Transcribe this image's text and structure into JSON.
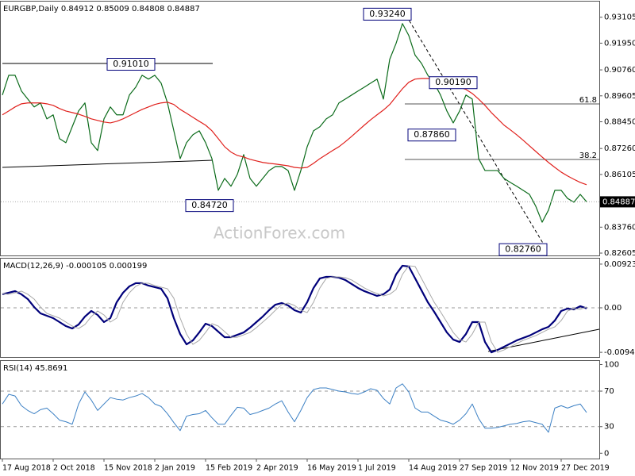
{
  "chart_data": [
    {
      "type": "line",
      "title": "EURGBP,Daily 0.84912 0.85009 0.84808 0.84887",
      "watermark": "ActionForex.com",
      "ylim": [
        0.825,
        0.938
      ],
      "yticks": [
        0.93105,
        {
          "value": 0.9195,
          "label": "0.91950"
        },
        {
          "value": 0.9076,
          "label": "0.90760"
        },
        0.89605,
        {
          "value": 0.8845,
          "label": "0.88450"
        },
        {
          "value": 0.8726,
          "label": "0.87260"
        },
        0.86105,
        {
          "value": 0.8376,
          "label": "0.83760"
        },
        0.82605
      ],
      "last_price": 0.84887,
      "annotations": [
        {
          "value": 0.9324,
          "label": "0.93240"
        },
        {
          "value": 0.9101,
          "label": "0.91010"
        },
        {
          "value": 0.9019,
          "label": "0.90190"
        },
        {
          "value": 0.8786,
          "label": "0.87860"
        },
        {
          "value": 0.8472,
          "label": "0.84720"
        },
        {
          "value": 0.8276,
          "label": "0.82760"
        }
      ],
      "fib_labels": [
        61.8,
        38.2
      ],
      "series": [
        {
          "color": "#0b6b1a",
          "values": [
            0.8964,
            0.9052,
            0.9052,
            0.8982,
            0.8946,
            0.8911,
            0.8929,
            0.8858,
            0.8876,
            0.877,
            0.8752,
            0.8823,
            0.8893,
            0.8929,
            0.8752,
            0.8717,
            0.8858,
            0.8911,
            0.8876,
            0.8876,
            0.8964,
            0.8999,
            0.9052,
            0.9035,
            0.9052,
            0.9017,
            0.8929,
            0.8805,
            0.8681,
            0.8752,
            0.8787,
            0.8805,
            0.8752,
            0.8681,
            0.854,
            0.8593,
            0.8558,
            0.8611,
            0.8699,
            0.8593,
            0.8558,
            0.8593,
            0.8628,
            0.8646,
            0.8646,
            0.8628,
            0.854,
            0.8628,
            0.8734,
            0.8805,
            0.8823,
            0.8858,
            0.8876,
            0.8929,
            0.8946,
            0.8964,
            0.8982,
            0.8999,
            0.9017,
            0.9035,
            0.8946,
            0.9123,
            0.9194,
            0.9282,
            0.9229,
            0.9141,
            0.9105,
            0.9052,
            0.9017,
            0.8964,
            0.8893,
            0.884,
            0.8893,
            0.8964,
            0.8946,
            0.8681,
            0.8628,
            0.8628,
            0.8628,
            0.8593,
            0.8575,
            0.8558,
            0.854,
            0.8522,
            0.8469,
            0.8398,
            0.8452,
            0.854,
            0.854,
            0.8504,
            0.8487,
            0.8522,
            0.8489
          ]
        },
        {
          "color": "#e0201c",
          "values": [
            0.8876,
            0.8893,
            0.8911,
            0.8925,
            0.8929,
            0.8929,
            0.8929,
            0.8925,
            0.8918,
            0.8904,
            0.8893,
            0.8886,
            0.8879,
            0.8869,
            0.8858,
            0.8851,
            0.8844,
            0.884,
            0.8847,
            0.8858,
            0.8872,
            0.8886,
            0.89,
            0.8911,
            0.8922,
            0.8929,
            0.8932,
            0.8922,
            0.89,
            0.8883,
            0.8865,
            0.8847,
            0.883,
            0.8805,
            0.877,
            0.8734,
            0.871,
            0.8695,
            0.8688,
            0.8678,
            0.8671,
            0.8664,
            0.866,
            0.8657,
            0.8653,
            0.8649,
            0.8642,
            0.8639,
            0.8642,
            0.866,
            0.8681,
            0.8699,
            0.8717,
            0.8734,
            0.8756,
            0.878,
            0.8805,
            0.883,
            0.8854,
            0.8876,
            0.8897,
            0.8922,
            0.8957,
            0.8992,
            0.9021,
            0.9035,
            0.9038,
            0.9038,
            0.9035,
            0.9028,
            0.9017,
            0.9007,
            0.8999,
            0.8989,
            0.8971,
            0.8946,
            0.8918,
            0.8886,
            0.8858,
            0.883,
            0.8809,
            0.8787,
            0.8763,
            0.8738,
            0.8713,
            0.8688,
            0.8664,
            0.8642,
            0.8621,
            0.8604,
            0.8589,
            0.8575,
            0.8565
          ]
        }
      ]
    },
    {
      "type": "line",
      "title": "MACD(12,26,9) -0.000105 0.000199",
      "ylim": [
        -0.0104,
        0.0104
      ],
      "yticks": [
        0.009237,
        {
          "value": 0,
          "label": "0.00"
        },
        -0.009413
      ],
      "levels": [
        0
      ],
      "series": [
        {
          "color": "#00007a",
          "width": 2.2,
          "values": [
            0.00286,
            0.00319,
            0.00353,
            0.00286,
            0.00185,
            0.00017,
            -0.00118,
            -0.00168,
            -0.00218,
            -0.00302,
            -0.00386,
            -0.00437,
            -0.00353,
            -0.00185,
            -0.00067,
            -0.00151,
            -0.00302,
            -0.00218,
            0.00118,
            0.00319,
            0.00454,
            0.00521,
            0.00521,
            0.0047,
            0.00437,
            0.00403,
            0.00202,
            -0.00218,
            -0.00554,
            -0.00773,
            -0.00689,
            -0.00521,
            -0.00336,
            -0.00386,
            -0.00504,
            -0.00622,
            -0.00622,
            -0.00571,
            -0.00521,
            -0.0042,
            -0.00302,
            -0.00185,
            -0.0005,
            0.00067,
            0.00101,
            0.0005,
            -0.0005,
            -0.00101,
            0.00118,
            0.0042,
            0.00622,
            0.00655,
            0.00655,
            0.00638,
            0.00588,
            0.00504,
            0.0042,
            0.00353,
            0.00302,
            0.00252,
            0.00286,
            0.00386,
            0.00706,
            0.0089,
            0.00874,
            0.00622,
            0.0037,
            0.00118,
            -0.00084,
            -0.00302,
            -0.00521,
            -0.00672,
            -0.00722,
            -0.00554,
            -0.00302,
            -0.00302,
            -0.00722,
            -0.00941,
            -0.0089,
            -0.00823,
            -0.00756,
            -0.00689,
            -0.00638,
            -0.00588,
            -0.00521,
            -0.00454,
            -0.00403,
            -0.00269,
            -0.00067,
            -0.00017,
            -0.00034,
            0.00034,
            -0.00011
          ]
        },
        {
          "color": "#a8a8a8",
          "width": 1,
          "values": [
            0.003,
            0.00286,
            0.00319,
            0.00353,
            0.00286,
            0.00185,
            0.00017,
            -0.00118,
            -0.00168,
            -0.00218,
            -0.00302,
            -0.00386,
            -0.00437,
            -0.00353,
            -0.00185,
            -0.00067,
            -0.00151,
            -0.00302,
            -0.00218,
            0.00118,
            0.00319,
            0.00454,
            0.00521,
            0.00521,
            0.0047,
            0.00437,
            0.00403,
            0.00202,
            -0.00218,
            -0.00554,
            -0.00773,
            -0.00689,
            -0.00521,
            -0.00336,
            -0.00386,
            -0.00504,
            -0.00622,
            -0.00622,
            -0.00571,
            -0.00521,
            -0.0042,
            -0.00302,
            -0.00185,
            -0.0005,
            0.00067,
            0.00101,
            0.0005,
            -0.0005,
            -0.00101,
            0.00118,
            0.0042,
            0.00622,
            0.00655,
            0.00655,
            0.00638,
            0.00588,
            0.00504,
            0.0042,
            0.00353,
            0.00302,
            0.00252,
            0.00286,
            0.00386,
            0.00706,
            0.0089,
            0.00874,
            0.00622,
            0.0037,
            0.00118,
            -0.00084,
            -0.00302,
            -0.00521,
            -0.00672,
            -0.00722,
            -0.00554,
            -0.00302,
            -0.00302,
            -0.00722,
            -0.00941,
            -0.0089,
            -0.00823,
            -0.00756,
            -0.00689,
            -0.00638,
            -0.00588,
            -0.00521,
            -0.00454,
            -0.00403,
            -0.00269,
            -0.00067,
            -0.00017,
            -0.00034,
            0.0002
          ]
        }
      ]
    },
    {
      "type": "line",
      "title": "RSI(14) 45.8691",
      "ylim": [
        -6,
        104
      ],
      "yticks": [
        100,
        70,
        30,
        0
      ],
      "levels": [
        70,
        30
      ],
      "categories": [
        "17 Aug 2018",
        null,
        null,
        null,
        null,
        null,
        null,
        null,
        "2 Oct 2018",
        null,
        null,
        null,
        null,
        null,
        null,
        null,
        "15 Nov 2018",
        null,
        null,
        null,
        null,
        null,
        null,
        null,
        "2 Jan 2019",
        null,
        null,
        null,
        null,
        null,
        null,
        null,
        "15 Feb 2019",
        null,
        null,
        null,
        null,
        null,
        null,
        null,
        "2 Apr 2019",
        null,
        null,
        null,
        null,
        null,
        null,
        null,
        "16 May 2019",
        null,
        null,
        null,
        null,
        null,
        null,
        null,
        "1 Jul 2019",
        null,
        null,
        null,
        null,
        null,
        null,
        null,
        "14 Aug 2019",
        null,
        null,
        null,
        null,
        null,
        null,
        null,
        "27 Sep 2019",
        null,
        null,
        null,
        null,
        null,
        null,
        null,
        "12 Nov 2019",
        null,
        null,
        null,
        null,
        null,
        null,
        null,
        "27 Dec 2019",
        null,
        null,
        null,
        null
      ],
      "series": [
        {
          "color": "#3c80c4",
          "width": 1,
          "values": [
            55.5,
            66.4,
            64.5,
            53.6,
            48.2,
            44.5,
            49.1,
            50.9,
            44.5,
            37.3,
            35.5,
            32.7,
            55.5,
            69.1,
            60.0,
            48.2,
            55.5,
            62.7,
            60.9,
            60.0,
            62.7,
            64.5,
            67.3,
            62.7,
            55.5,
            52.7,
            44.5,
            34.5,
            25.5,
            41.8,
            43.6,
            44.5,
            48.2,
            40.0,
            32.7,
            32.7,
            42.7,
            51.8,
            50.9,
            43.6,
            45.5,
            48.2,
            50.9,
            55.5,
            59.1,
            46.4,
            35.5,
            48.2,
            62.7,
            71.8,
            73.6,
            73.6,
            71.8,
            70.0,
            69.1,
            67.3,
            66.4,
            69.1,
            72.7,
            70.9,
            61.8,
            55.5,
            73.6,
            78.2,
            69.1,
            50.9,
            46.4,
            46.4,
            41.8,
            37.3,
            35.5,
            32.7,
            37.3,
            44.5,
            55.5,
            39.1,
            28.2,
            28.2,
            29.1,
            30.9,
            32.7,
            33.6,
            35.5,
            36.4,
            34.5,
            32.7,
            23.6,
            50.9,
            53.6,
            50.9,
            53.6,
            55.5,
            45.9
          ]
        }
      ]
    }
  ]
}
